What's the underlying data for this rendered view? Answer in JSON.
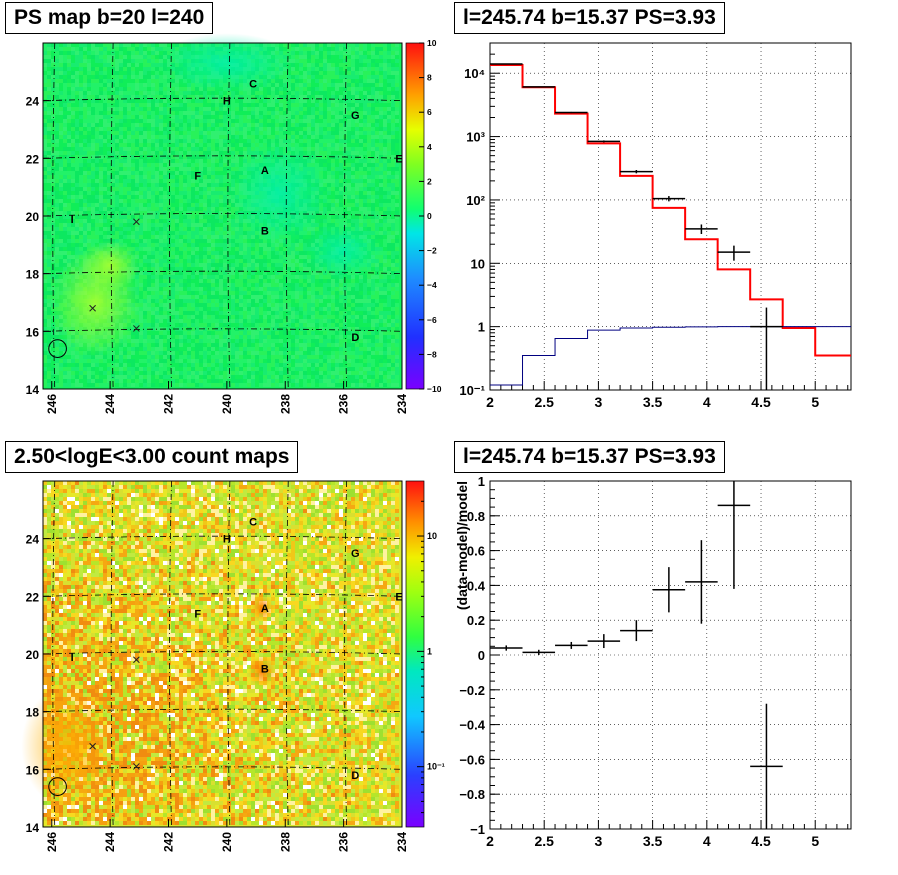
{
  "panels": {
    "ps_map": {
      "title": "PS map b=20 l=240",
      "x_ticks": [
        "246",
        "244",
        "242",
        "240",
        "238",
        "236",
        "234"
      ],
      "y_ticks": [
        "24",
        "22",
        "20",
        "18",
        "16",
        "14"
      ],
      "palette_ticks": [
        "10",
        "8",
        "6",
        "4",
        "2",
        "0",
        "−2",
        "−4",
        "−6",
        "−8",
        "−10"
      ],
      "source_labels": [
        "C",
        "H",
        "G",
        "E",
        "F",
        "A",
        "I",
        "B",
        "D"
      ]
    },
    "count_map": {
      "title": "2.50<logE<3.00 count maps",
      "x_ticks": [
        "246",
        "244",
        "242",
        "240",
        "238",
        "236",
        "234"
      ],
      "y_ticks": [
        "24",
        "22",
        "20",
        "18",
        "16",
        "14"
      ],
      "palette_ticks": [
        "10",
        "1",
        "10⁻¹"
      ],
      "source_labels": [
        "C",
        "H",
        "G",
        "E",
        "F",
        "A",
        "I",
        "B",
        "D"
      ]
    },
    "spectrum": {
      "title": "l=245.74 b=15.37 PS=3.93"
    },
    "residual": {
      "title": "l=245.74 b=15.37 PS=3.93"
    }
  },
  "chart_data": [
    {
      "type": "heatmap",
      "title": "PS map b=20 l=240",
      "xlim": [
        246.3,
        234.0
      ],
      "ylim": [
        14,
        26
      ],
      "x_ticks": [
        246,
        244,
        242,
        240,
        238,
        236,
        234
      ],
      "y_ticks": [
        14,
        16,
        18,
        20,
        22,
        24
      ],
      "z_range": [
        -10,
        10
      ],
      "z_ticks": [
        -10,
        -8,
        -6,
        -4,
        -2,
        0,
        2,
        4,
        6,
        8,
        10
      ],
      "sources": [
        {
          "label": "C",
          "x": 239.1,
          "y": 24.6
        },
        {
          "label": "H",
          "x": 240.0,
          "y": 24.0
        },
        {
          "label": "G",
          "x": 235.6,
          "y": 23.5
        },
        {
          "label": "E",
          "x": 234.1,
          "y": 22.0
        },
        {
          "label": "F",
          "x": 241.0,
          "y": 21.4
        },
        {
          "label": "A",
          "x": 238.7,
          "y": 21.6
        },
        {
          "label": "I",
          "x": 245.3,
          "y": 19.9
        },
        {
          "label": "B",
          "x": 238.7,
          "y": 19.5
        },
        {
          "label": "D",
          "x": 235.6,
          "y": 15.8
        }
      ],
      "markers_x": [
        {
          "x": 243.1,
          "y": 19.8
        },
        {
          "x": 244.6,
          "y": 16.8
        },
        {
          "x": 243.1,
          "y": 16.1
        }
      ],
      "circle": {
        "x": 245.8,
        "y": 15.4,
        "r_deg": 0.55
      },
      "grid": true
    },
    {
      "type": "heatmap",
      "title": "2.50<logE<3.00 count maps",
      "xlim": [
        246.3,
        234.0
      ],
      "ylim": [
        14,
        26
      ],
      "x_ticks": [
        246,
        244,
        242,
        240,
        238,
        236,
        234
      ],
      "y_ticks": [
        14,
        16,
        18,
        20,
        22,
        24
      ],
      "z_scale": "log",
      "z_range": [
        0.03,
        30
      ],
      "z_tick_labels": [
        "10",
        "1",
        "10⁻¹"
      ],
      "sources": [
        {
          "label": "C",
          "x": 239.1,
          "y": 24.6
        },
        {
          "label": "H",
          "x": 240.0,
          "y": 24.0
        },
        {
          "label": "G",
          "x": 235.6,
          "y": 23.5
        },
        {
          "label": "E",
          "x": 234.1,
          "y": 22.0
        },
        {
          "label": "F",
          "x": 241.0,
          "y": 21.4
        },
        {
          "label": "A",
          "x": 238.7,
          "y": 21.6
        },
        {
          "label": "I",
          "x": 245.3,
          "y": 19.9
        },
        {
          "label": "B",
          "x": 238.7,
          "y": 19.5
        },
        {
          "label": "D",
          "x": 235.6,
          "y": 15.8
        }
      ],
      "markers_x": [
        {
          "x": 243.1,
          "y": 19.8
        },
        {
          "x": 244.6,
          "y": 16.8
        },
        {
          "x": 243.1,
          "y": 16.1
        }
      ],
      "circle": {
        "x": 245.8,
        "y": 15.4,
        "r_deg": 0.55
      },
      "grid": true
    },
    {
      "type": "line",
      "title": "l=245.74 b=15.37 PS=3.93",
      "xlim": [
        2,
        5.33
      ],
      "ylim": [
        0.1,
        30000
      ],
      "y_scale": "log",
      "x_ticks": [
        2,
        2.5,
        3,
        3.5,
        4,
        4.5,
        5
      ],
      "x_tick_labels": [
        "2",
        "2.5",
        "3",
        "3.5",
        "4",
        "4.5",
        "5"
      ],
      "y_ticks": [
        0.1,
        1,
        10,
        100,
        1000,
        10000
      ],
      "y_tick_labels": [
        "10⁻¹",
        "1",
        "10",
        "10²",
        "10³",
        "10⁴"
      ],
      "grid": true,
      "series": [
        {
          "style": "histogram",
          "color": "#ff0000",
          "edges": [
            2.0,
            2.3,
            2.6,
            2.9,
            3.2,
            3.5,
            3.8,
            4.1,
            4.4,
            4.7,
            5.0,
            5.33
          ],
          "values": [
            13500,
            6000,
            2300,
            780,
            240,
            75,
            24,
            8,
            2.7,
            0.95,
            0.35
          ]
        },
        {
          "style": "histogram",
          "color": "#000080",
          "edges": [
            2.0,
            2.3,
            2.6,
            2.9,
            3.2,
            3.5,
            3.8,
            4.1,
            4.4,
            4.7,
            5.0,
            5.33
          ],
          "values": [
            0.12,
            0.35,
            0.65,
            0.88,
            0.95,
            0.98,
            0.99,
            1.0,
            1.0,
            1.0,
            1.0
          ]
        },
        {
          "style": "errorbars",
          "color": "#000000",
          "points": [
            {
              "x": 2.15,
              "xerr": 0.15,
              "y": 14000,
              "yerr_low": 120,
              "yerr_high": 120
            },
            {
              "x": 2.45,
              "xerr": 0.15,
              "y": 6100,
              "yerr_low": 80,
              "yerr_high": 80
            },
            {
              "x": 2.75,
              "xerr": 0.15,
              "y": 2400,
              "yerr_low": 50,
              "yerr_high": 50
            },
            {
              "x": 3.05,
              "xerr": 0.15,
              "y": 840,
              "yerr_low": 30,
              "yerr_high": 30
            },
            {
              "x": 3.35,
              "xerr": 0.15,
              "y": 280,
              "yerr_low": 17,
              "yerr_high": 17
            },
            {
              "x": 3.65,
              "xerr": 0.15,
              "y": 105,
              "yerr_low": 10,
              "yerr_high": 10
            },
            {
              "x": 3.95,
              "xerr": 0.15,
              "y": 35,
              "yerr_low": 6,
              "yerr_high": 6
            },
            {
              "x": 4.25,
              "xerr": 0.15,
              "y": 15,
              "yerr_low": 4,
              "yerr_high": 4
            },
            {
              "x": 4.55,
              "xerr": 0.15,
              "y": 1,
              "yerr_low": 0.95,
              "yerr_high": 1
            }
          ]
        }
      ]
    },
    {
      "type": "scatter",
      "title": "l=245.74 b=15.37 PS=3.93",
      "ylabel": "(data-model)/model",
      "xlim": [
        2,
        5.33
      ],
      "ylim": [
        -1,
        1
      ],
      "x_ticks": [
        2,
        2.5,
        3,
        3.5,
        4,
        4.5,
        5
      ],
      "x_tick_labels": [
        "2",
        "2.5",
        "3",
        "3.5",
        "4",
        "4.5",
        "5"
      ],
      "y_ticks": [
        -1,
        -0.8,
        -0.6,
        -0.4,
        -0.2,
        0,
        0.2,
        0.4,
        0.6,
        0.8,
        1
      ],
      "y_tick_labels": [
        "−1",
        "−0.8",
        "−0.6",
        "−0.4",
        "−0.2",
        "0",
        "0.2",
        "0.4",
        "0.6",
        "0.8",
        "1"
      ],
      "grid": true,
      "points": [
        {
          "x": 2.15,
          "xerr": 0.15,
          "y": 0.04,
          "yerr": 0.015
        },
        {
          "x": 2.45,
          "xerr": 0.15,
          "y": 0.015,
          "yerr": 0.015
        },
        {
          "x": 2.75,
          "xerr": 0.15,
          "y": 0.055,
          "yerr": 0.02
        },
        {
          "x": 3.05,
          "xerr": 0.15,
          "y": 0.08,
          "yerr": 0.04
        },
        {
          "x": 3.35,
          "xerr": 0.15,
          "y": 0.14,
          "yerr": 0.06
        },
        {
          "x": 3.65,
          "xerr": 0.15,
          "y": 0.375,
          "yerr": 0.13
        },
        {
          "x": 3.95,
          "xerr": 0.15,
          "y": 0.42,
          "yerr": 0.24
        },
        {
          "x": 4.25,
          "xerr": 0.15,
          "y": 0.86,
          "yerr": 0.48
        },
        {
          "x": 4.55,
          "xerr": 0.15,
          "y": -0.64,
          "yerr": 0.36
        }
      ]
    }
  ]
}
